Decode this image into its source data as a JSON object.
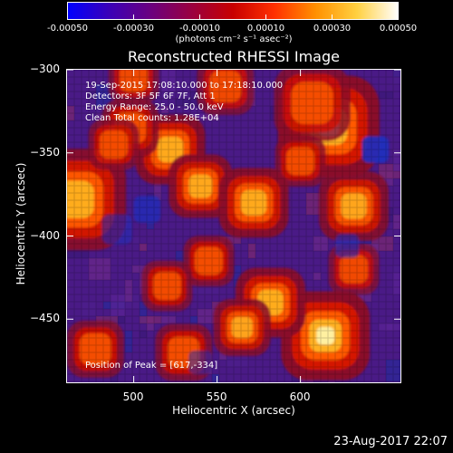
{
  "colorbar": {
    "ticks": [
      {
        "label": "-0.00050",
        "frac": 0.0
      },
      {
        "label": "-0.00030",
        "frac": 0.2
      },
      {
        "label": "-0.00010",
        "frac": 0.4
      },
      {
        "label": "0.00010",
        "frac": 0.6
      },
      {
        "label": "0.00030",
        "frac": 0.8
      },
      {
        "label": "0.00050",
        "frac": 1.0
      }
    ],
    "units": "(photons cm⁻² s⁻¹ asec⁻²)",
    "stops": [
      "#0000ff",
      "#3a00b8",
      "#6a0080",
      "#9a0040",
      "#c80000",
      "#ff3000",
      "#ff9000",
      "#ffd040",
      "#ffffff"
    ]
  },
  "title": "Reconstructed RHESSI Image",
  "annotations": [
    "19-Sep-2015 17:08:10.000 to 17:18:10.000",
    "Detectors: 3F 5F 6F 7F, Att 1",
    "Energy Range: 25.0 - 50.0 keV",
    "Clean     Total counts: 1.28E+04"
  ],
  "peak_text": "Position of Peak = [617,-334]",
  "xaxis": {
    "label": "Heliocentric X (arcsec)",
    "ticks": [
      {
        "label": "500",
        "value": 500
      },
      {
        "label": "550",
        "value": 550
      },
      {
        "label": "600",
        "value": 600
      }
    ],
    "range": [
      460,
      660
    ]
  },
  "yaxis": {
    "label": "Heliocentric Y (arcsec)",
    "ticks": [
      {
        "label": "−300",
        "value": -300
      },
      {
        "label": "−350",
        "value": -350
      },
      {
        "label": "−400",
        "value": -400
      },
      {
        "label": "−450",
        "value": -450
      }
    ],
    "range": [
      -300,
      -488
    ]
  },
  "timestamp": "23-Aug-2017 22:07",
  "blobs": [
    {
      "x": 617,
      "y": -334,
      "r": 16,
      "a": 1.0
    },
    {
      "x": 607,
      "y": -320,
      "r": 12,
      "a": 0.6
    },
    {
      "x": 465,
      "y": -378,
      "r": 16,
      "a": 0.9
    },
    {
      "x": 522,
      "y": -348,
      "r": 11,
      "a": 0.85
    },
    {
      "x": 540,
      "y": -370,
      "r": 10,
      "a": 0.8
    },
    {
      "x": 572,
      "y": -380,
      "r": 11,
      "a": 0.85
    },
    {
      "x": 498,
      "y": -335,
      "r": 9,
      "a": 0.6
    },
    {
      "x": 488,
      "y": -345,
      "r": 8,
      "a": 0.55
    },
    {
      "x": 615,
      "y": -460,
      "r": 14,
      "a": 1.0
    },
    {
      "x": 582,
      "y": -440,
      "r": 11,
      "a": 0.9
    },
    {
      "x": 565,
      "y": -455,
      "r": 9,
      "a": 0.7
    },
    {
      "x": 632,
      "y": -382,
      "r": 11,
      "a": 0.75
    },
    {
      "x": 545,
      "y": -415,
      "r": 8,
      "a": 0.6
    },
    {
      "x": 530,
      "y": -470,
      "r": 9,
      "a": 0.6
    },
    {
      "x": 600,
      "y": -355,
      "r": 8,
      "a": 0.55
    },
    {
      "x": 477,
      "y": -468,
      "r": 9,
      "a": 0.6
    },
    {
      "x": 500,
      "y": -305,
      "r": 8,
      "a": 0.45
    },
    {
      "x": 555,
      "y": -310,
      "r": 9,
      "a": 0.5
    },
    {
      "x": 632,
      "y": -420,
      "r": 8,
      "a": 0.5
    },
    {
      "x": 520,
      "y": -430,
      "r": 8,
      "a": 0.55
    }
  ],
  "cold": [
    {
      "x": 645,
      "y": -348,
      "r": 8,
      "a": 0.9
    },
    {
      "x": 508,
      "y": -384,
      "r": 8,
      "a": 0.7
    },
    {
      "x": 628,
      "y": -406,
      "r": 7,
      "a": 0.6
    },
    {
      "x": 490,
      "y": -396,
      "r": 9,
      "a": 0.55
    },
    {
      "x": 540,
      "y": -476,
      "r": 7,
      "a": 0.5
    }
  ]
}
